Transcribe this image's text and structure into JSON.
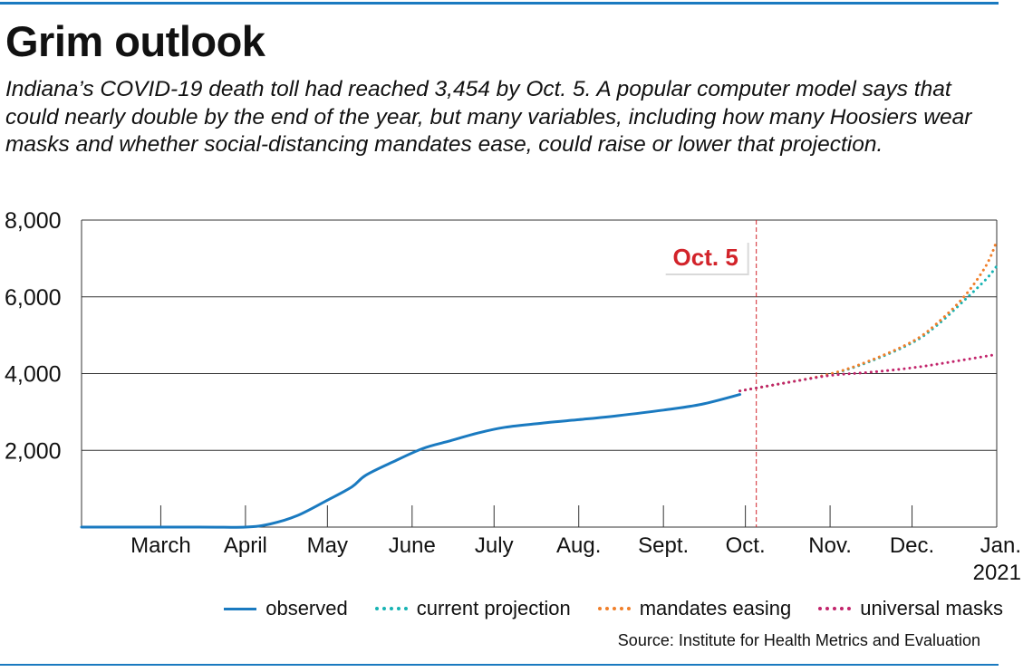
{
  "header": {
    "title": "Grim outlook",
    "subtitle": "Indiana’s COVID-19 death toll had reached 3,454 by Oct. 5. A popular computer model says that could nearly double by the end of the year, but many variables, including how many Hoosiers wear masks and whether social-distancing mandates ease, could raise or lower that projection."
  },
  "source": "Source: Institute for Health Metrics and Evaluation",
  "colors": {
    "observed": "#1a7ac0",
    "current_projection": "#17b3b3",
    "mandates_easing": "#f07f2a",
    "universal_masks": "#c2246b",
    "annotation": "#d2232a",
    "grid": "#333333"
  },
  "chart_data": {
    "type": "line",
    "ylim": [
      0,
      8000
    ],
    "y_ticks": [
      2000,
      4000,
      6000,
      8000
    ],
    "y_tick_labels": [
      "2,000",
      "4,000",
      "6,000",
      "8,000"
    ],
    "x_range": [
      "2020-02-01",
      "2021-01-01"
    ],
    "x_ticks": [
      "2020-03-01",
      "2020-04-01",
      "2020-05-01",
      "2020-06-01",
      "2020-07-01",
      "2020-08-01",
      "2020-09-01",
      "2020-10-01",
      "2020-11-01",
      "2020-12-01",
      "2021-01-01"
    ],
    "x_tick_labels": [
      "March",
      "April",
      "May",
      "June",
      "July",
      "Aug.",
      "Sept.",
      "Oct.",
      "Nov.",
      "Dec.",
      "Jan.\n2021"
    ],
    "grid": true,
    "legend_position": "bottom",
    "annotation": {
      "label": "Oct. 5",
      "x": "2020-10-05"
    },
    "series": [
      {
        "name": "observed",
        "style": "solid",
        "points": [
          [
            "2020-02-01",
            0
          ],
          [
            "2020-03-15",
            0
          ],
          [
            "2020-04-01",
            0
          ],
          [
            "2020-04-10",
            80
          ],
          [
            "2020-04-20",
            300
          ],
          [
            "2020-05-01",
            700
          ],
          [
            "2020-05-10",
            1050
          ],
          [
            "2020-05-15",
            1350
          ],
          [
            "2020-05-25",
            1700
          ],
          [
            "2020-06-05",
            2050
          ],
          [
            "2020-06-15",
            2250
          ],
          [
            "2020-06-25",
            2450
          ],
          [
            "2020-07-05",
            2600
          ],
          [
            "2020-07-20",
            2720
          ],
          [
            "2020-08-01",
            2800
          ],
          [
            "2020-08-15",
            2900
          ],
          [
            "2020-09-01",
            3050
          ],
          [
            "2020-09-15",
            3200
          ],
          [
            "2020-09-29",
            3454
          ]
        ]
      },
      {
        "name": "current projection",
        "style": "dotted",
        "points": [
          [
            "2020-09-29",
            3550
          ],
          [
            "2020-10-15",
            3750
          ],
          [
            "2020-11-01",
            3980
          ],
          [
            "2020-11-15",
            4300
          ],
          [
            "2020-12-01",
            4800
          ],
          [
            "2020-12-10",
            5250
          ],
          [
            "2020-12-20",
            5900
          ],
          [
            "2020-12-28",
            6450
          ],
          [
            "2021-01-01",
            6800
          ]
        ]
      },
      {
        "name": "mandates easing",
        "style": "dotted",
        "points": [
          [
            "2020-09-29",
            3550
          ],
          [
            "2020-10-15",
            3750
          ],
          [
            "2020-11-01",
            3990
          ],
          [
            "2020-11-15",
            4320
          ],
          [
            "2020-12-01",
            4830
          ],
          [
            "2020-12-10",
            5300
          ],
          [
            "2020-12-20",
            6000
          ],
          [
            "2020-12-28",
            6800
          ],
          [
            "2021-01-01",
            7450
          ]
        ]
      },
      {
        "name": "universal masks",
        "style": "dotted",
        "points": [
          [
            "2020-09-29",
            3550
          ],
          [
            "2020-10-15",
            3750
          ],
          [
            "2020-11-01",
            3950
          ],
          [
            "2020-11-15",
            4030
          ],
          [
            "2020-12-01",
            4150
          ],
          [
            "2020-12-15",
            4300
          ],
          [
            "2021-01-01",
            4500
          ]
        ]
      }
    ]
  }
}
